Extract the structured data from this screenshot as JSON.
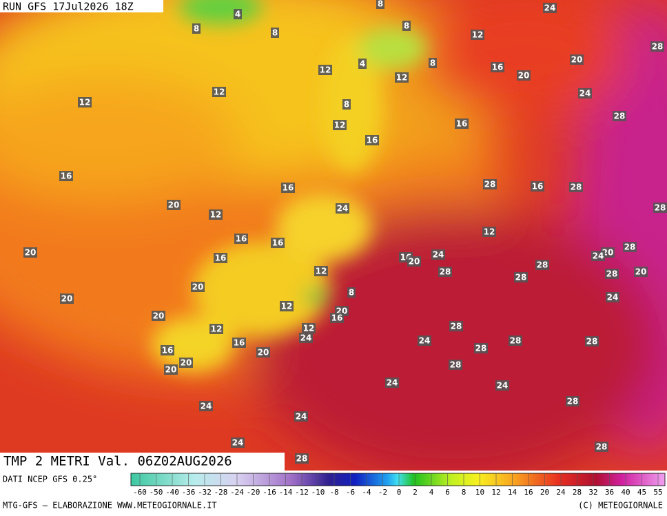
{
  "header": {
    "run": "RUN GFS 17Jul2026 18Z"
  },
  "map": {
    "title": "TMP 2 METRI Val. 06Z02AUG2026",
    "labels": [
      4,
      8,
      8,
      8,
      8,
      24,
      12,
      28,
      12,
      4,
      8,
      16,
      20,
      20,
      12,
      12,
      12,
      8,
      24,
      12,
      16,
      28,
      16,
      16,
      16,
      20,
      24,
      28,
      16,
      12,
      16,
      28,
      28,
      12,
      16,
      20,
      16,
      16,
      20,
      24,
      20,
      24,
      28,
      28,
      28,
      12,
      28,
      20,
      28,
      20,
      20,
      8,
      12,
      24,
      20,
      20,
      16,
      12,
      12,
      28,
      24,
      16,
      24,
      28,
      28,
      28,
      16,
      20,
      20,
      20,
      28,
      24,
      24,
      28,
      24,
      24,
      24,
      28,
      28
    ]
  },
  "footer": {
    "source": "DATI NCEP GFS 0.25°",
    "credit": "MTG-GFS — ELABORAZIONE WWW.METEOGIORNALE.IT",
    "copyright": "(C) METEOGIORNALE",
    "scale": [
      "-60",
      "-50",
      "-40",
      "-36",
      "-32",
      "-28",
      "-24",
      "-20",
      "-16",
      "-14",
      "-12",
      "-10",
      "-8",
      "-6",
      "-4",
      "-2",
      "0",
      "2",
      "4",
      "6",
      "8",
      "10",
      "12",
      "14",
      "16",
      "20",
      "24",
      "28",
      "32",
      "36",
      "40",
      "45",
      "55"
    ]
  }
}
